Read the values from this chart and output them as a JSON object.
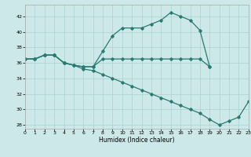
{
  "xlabel": "Humidex (Indice chaleur)",
  "bg_color": "#cce8e8",
  "line_color": "#2a7a72",
  "grid_color": "#aad0d0",
  "xlim": [
    0,
    23
  ],
  "ylim": [
    27.5,
    43.5
  ],
  "xticks": [
    0,
    1,
    2,
    3,
    4,
    5,
    6,
    7,
    8,
    9,
    10,
    11,
    12,
    13,
    14,
    15,
    16,
    17,
    18,
    19,
    20,
    21,
    22,
    23
  ],
  "yticks": [
    28,
    30,
    32,
    34,
    36,
    38,
    40,
    42
  ],
  "line1_x": [
    0,
    1,
    2,
    3,
    4,
    5,
    6,
    7,
    8,
    9,
    10,
    11,
    12,
    13,
    14,
    15,
    16,
    17,
    18,
    19
  ],
  "line1_y": [
    36.5,
    36.5,
    37.0,
    37.0,
    36.0,
    35.7,
    35.5,
    35.5,
    37.5,
    39.5,
    40.5,
    40.5,
    40.5,
    41.0,
    41.5,
    42.5,
    42.0,
    41.5,
    40.2,
    35.5
  ],
  "line2_x": [
    0,
    1,
    2,
    3,
    4,
    5,
    6,
    7,
    8,
    9,
    10,
    11,
    12,
    13,
    14,
    15,
    16,
    17,
    18,
    19
  ],
  "line2_y": [
    36.5,
    36.5,
    37.0,
    37.0,
    36.0,
    35.7,
    35.5,
    35.5,
    36.5,
    36.5,
    36.5,
    36.5,
    36.5,
    36.5,
    36.5,
    36.5,
    36.5,
    36.5,
    36.5,
    35.5
  ],
  "line3_x": [
    0,
    1,
    2,
    3,
    4,
    5,
    6,
    7,
    8,
    9,
    10,
    11,
    12,
    13,
    14,
    15,
    16,
    17,
    18,
    19,
    20,
    21,
    22,
    23
  ],
  "line3_y": [
    36.5,
    36.5,
    37.0,
    37.0,
    36.0,
    35.7,
    35.2,
    35.0,
    34.5,
    34.0,
    33.5,
    33.0,
    32.5,
    32.0,
    31.5,
    31.0,
    30.5,
    30.0,
    29.5,
    28.7,
    28.0,
    28.5,
    29.0,
    31.0
  ]
}
